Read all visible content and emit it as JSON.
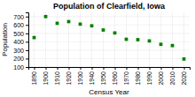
{
  "chart_data": {
    "type": "scatter",
    "title": "Population of Clearfield, Iowa",
    "xlabel": "Census Year",
    "ylabel": "Population",
    "x": [
      1890,
      1900,
      1910,
      1920,
      1930,
      1940,
      1950,
      1960,
      1970,
      1980,
      1990,
      2000,
      2010,
      2020
    ],
    "values": [
      450,
      700,
      620,
      640,
      610,
      590,
      540,
      505,
      430,
      425,
      410,
      370,
      355,
      195
    ],
    "color": "#008000",
    "marker": "square",
    "xlim": [
      1885,
      2025
    ],
    "xticks": [
      1890,
      1900,
      1910,
      1920,
      1930,
      1940,
      1950,
      1960,
      1970,
      1980,
      1990,
      2000,
      2010,
      2020
    ],
    "ylim": [
      100,
      750
    ],
    "yticks": [
      100,
      200,
      300,
      400,
      500,
      600,
      700
    ],
    "grid": true
  }
}
